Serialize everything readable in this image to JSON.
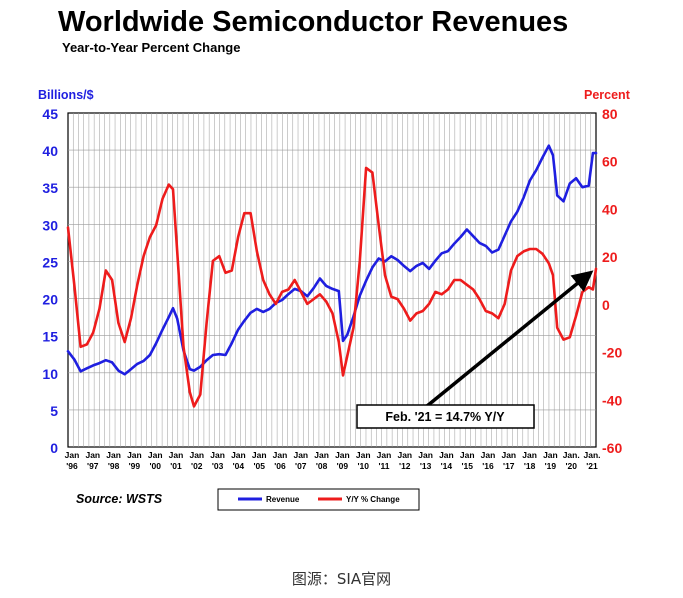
{
  "chart_data": {
    "type": "line",
    "title": "Worldwide Semiconductor Revenues",
    "subtitle": "Year-to-Year Percent Change",
    "left_axis": {
      "label": "Billions/$",
      "min": 0,
      "max": 45,
      "ticks": [
        0,
        5,
        10,
        15,
        20,
        25,
        30,
        35,
        40,
        45
      ]
    },
    "right_axis": {
      "label": "Percent",
      "min": -60,
      "max": 80,
      "ticks": [
        -60,
        -40,
        -20,
        0,
        20,
        40,
        60,
        80
      ]
    },
    "x_axis": {
      "range": [
        1996.0,
        2021.15
      ],
      "ticks": [
        {
          "top": "Jan",
          "bottom": "'96"
        },
        {
          "top": "Jan",
          "bottom": "'97"
        },
        {
          "top": "Jan",
          "bottom": "'98"
        },
        {
          "top": "Jan",
          "bottom": "'99"
        },
        {
          "top": "Jan",
          "bottom": "'00"
        },
        {
          "top": "Jan",
          "bottom": "'01"
        },
        {
          "top": "Jan",
          "bottom": "'02"
        },
        {
          "top": "Jan",
          "bottom": "'03"
        },
        {
          "top": "Jan",
          "bottom": "'04"
        },
        {
          "top": "Jan",
          "bottom": "'05"
        },
        {
          "top": "Jan",
          "bottom": "'06"
        },
        {
          "top": "Jan",
          "bottom": "'07"
        },
        {
          "top": "Jan",
          "bottom": "'08"
        },
        {
          "top": "Jan",
          "bottom": "'09"
        },
        {
          "top": "Jan",
          "bottom": "'10"
        },
        {
          "top": "Jan",
          "bottom": "'11"
        },
        {
          "top": "Jan",
          "bottom": "'12"
        },
        {
          "top": "Jan",
          "bottom": "'13"
        },
        {
          "top": "Jan",
          "bottom": "'14"
        },
        {
          "top": "Jan",
          "bottom": "'15"
        },
        {
          "top": "Jan",
          "bottom": "'16"
        },
        {
          "top": "Jan",
          "bottom": "'17"
        },
        {
          "top": "Jan",
          "bottom": "'18"
        },
        {
          "top": "Jan",
          "bottom": "'19"
        },
        {
          "top": "Jan.",
          "bottom": "'20"
        },
        {
          "top": "Jan.",
          "bottom": "'21"
        }
      ]
    },
    "grid": true,
    "series": [
      {
        "name": "Revenue",
        "axis": "left",
        "color": "#1f1fe0",
        "points": [
          [
            1996.0,
            12.9
          ],
          [
            1996.3,
            11.8
          ],
          [
            1996.6,
            10.2
          ],
          [
            1996.9,
            10.6
          ],
          [
            1997.2,
            11.0
          ],
          [
            1997.5,
            11.3
          ],
          [
            1997.8,
            11.7
          ],
          [
            1998.1,
            11.4
          ],
          [
            1998.4,
            10.3
          ],
          [
            1998.7,
            9.8
          ],
          [
            1999.0,
            10.5
          ],
          [
            1999.3,
            11.2
          ],
          [
            1999.6,
            11.6
          ],
          [
            1999.9,
            12.4
          ],
          [
            2000.2,
            14.0
          ],
          [
            2000.5,
            15.8
          ],
          [
            2000.8,
            17.5
          ],
          [
            2001.0,
            18.7
          ],
          [
            2001.2,
            17.3
          ],
          [
            2001.5,
            13.0
          ],
          [
            2001.8,
            10.5
          ],
          [
            2002.0,
            10.3
          ],
          [
            2002.3,
            10.8
          ],
          [
            2002.6,
            11.7
          ],
          [
            2002.9,
            12.4
          ],
          [
            2003.2,
            12.5
          ],
          [
            2003.5,
            12.4
          ],
          [
            2003.8,
            14.0
          ],
          [
            2004.1,
            15.8
          ],
          [
            2004.4,
            17.0
          ],
          [
            2004.7,
            18.1
          ],
          [
            2005.0,
            18.6
          ],
          [
            2005.3,
            18.2
          ],
          [
            2005.6,
            18.6
          ],
          [
            2005.9,
            19.4
          ],
          [
            2006.2,
            19.8
          ],
          [
            2006.5,
            20.6
          ],
          [
            2006.8,
            21.3
          ],
          [
            2007.1,
            21.0
          ],
          [
            2007.4,
            20.3
          ],
          [
            2007.7,
            21.4
          ],
          [
            2008.0,
            22.7
          ],
          [
            2008.3,
            21.7
          ],
          [
            2008.6,
            21.3
          ],
          [
            2008.9,
            21.0
          ],
          [
            2009.1,
            14.3
          ],
          [
            2009.3,
            15.1
          ],
          [
            2009.6,
            17.6
          ],
          [
            2009.9,
            20.4
          ],
          [
            2010.2,
            22.4
          ],
          [
            2010.5,
            24.2
          ],
          [
            2010.8,
            25.4
          ],
          [
            2011.1,
            25.0
          ],
          [
            2011.4,
            25.7
          ],
          [
            2011.7,
            25.2
          ],
          [
            2012.0,
            24.4
          ],
          [
            2012.3,
            23.7
          ],
          [
            2012.6,
            24.4
          ],
          [
            2012.9,
            24.8
          ],
          [
            2013.2,
            24.0
          ],
          [
            2013.5,
            25.1
          ],
          [
            2013.8,
            26.1
          ],
          [
            2014.1,
            26.4
          ],
          [
            2014.4,
            27.4
          ],
          [
            2014.7,
            28.3
          ],
          [
            2015.0,
            29.3
          ],
          [
            2015.3,
            28.4
          ],
          [
            2015.6,
            27.5
          ],
          [
            2015.9,
            27.1
          ],
          [
            2016.2,
            26.2
          ],
          [
            2016.5,
            26.6
          ],
          [
            2016.8,
            28.5
          ],
          [
            2017.1,
            30.4
          ],
          [
            2017.4,
            31.7
          ],
          [
            2017.7,
            33.6
          ],
          [
            2018.0,
            35.9
          ],
          [
            2018.3,
            37.3
          ],
          [
            2018.6,
            39.0
          ],
          [
            2018.9,
            40.6
          ],
          [
            2019.1,
            39.3
          ],
          [
            2019.3,
            33.9
          ],
          [
            2019.6,
            33.1
          ],
          [
            2019.9,
            35.5
          ],
          [
            2020.2,
            36.2
          ],
          [
            2020.5,
            35.0
          ],
          [
            2020.8,
            35.2
          ],
          [
            2021.0,
            39.6
          ],
          [
            2021.15,
            39.6
          ]
        ]
      },
      {
        "name": "Y/Y % Change",
        "axis": "right",
        "color": "#ee1c1c",
        "points": [
          [
            1996.0,
            32
          ],
          [
            1996.3,
            8
          ],
          [
            1996.6,
            -18
          ],
          [
            1996.9,
            -17
          ],
          [
            1997.2,
            -12
          ],
          [
            1997.5,
            -2
          ],
          [
            1997.8,
            14
          ],
          [
            1998.1,
            10
          ],
          [
            1998.4,
            -8
          ],
          [
            1998.7,
            -16
          ],
          [
            1999.0,
            -6
          ],
          [
            1999.3,
            8
          ],
          [
            1999.6,
            20
          ],
          [
            1999.9,
            28
          ],
          [
            2000.2,
            33
          ],
          [
            2000.5,
            44
          ],
          [
            2000.8,
            50
          ],
          [
            2001.0,
            48
          ],
          [
            2001.2,
            22
          ],
          [
            2001.5,
            -18
          ],
          [
            2001.8,
            -37
          ],
          [
            2002.0,
            -43
          ],
          [
            2002.3,
            -38
          ],
          [
            2002.6,
            -8
          ],
          [
            2002.9,
            18
          ],
          [
            2003.2,
            20
          ],
          [
            2003.5,
            13
          ],
          [
            2003.8,
            14
          ],
          [
            2004.1,
            28
          ],
          [
            2004.4,
            38
          ],
          [
            2004.7,
            38
          ],
          [
            2005.0,
            22
          ],
          [
            2005.3,
            10
          ],
          [
            2005.6,
            4
          ],
          [
            2005.9,
            0
          ],
          [
            2006.2,
            5
          ],
          [
            2006.5,
            6
          ],
          [
            2006.8,
            10
          ],
          [
            2007.1,
            5
          ],
          [
            2007.4,
            0
          ],
          [
            2007.7,
            2
          ],
          [
            2008.0,
            4
          ],
          [
            2008.3,
            1
          ],
          [
            2008.6,
            -4
          ],
          [
            2008.9,
            -16
          ],
          [
            2009.1,
            -30
          ],
          [
            2009.3,
            -22
          ],
          [
            2009.6,
            -10
          ],
          [
            2009.9,
            18
          ],
          [
            2010.2,
            57
          ],
          [
            2010.5,
            55
          ],
          [
            2010.8,
            33
          ],
          [
            2011.1,
            12
          ],
          [
            2011.4,
            3
          ],
          [
            2011.7,
            2
          ],
          [
            2012.0,
            -2
          ],
          [
            2012.3,
            -7
          ],
          [
            2012.6,
            -4
          ],
          [
            2012.9,
            -3
          ],
          [
            2013.2,
            0
          ],
          [
            2013.5,
            5
          ],
          [
            2013.8,
            4
          ],
          [
            2014.1,
            6
          ],
          [
            2014.4,
            10
          ],
          [
            2014.7,
            10
          ],
          [
            2015.0,
            8
          ],
          [
            2015.3,
            6
          ],
          [
            2015.6,
            2
          ],
          [
            2015.9,
            -3
          ],
          [
            2016.2,
            -4
          ],
          [
            2016.5,
            -6
          ],
          [
            2016.8,
            0
          ],
          [
            2017.1,
            14
          ],
          [
            2017.4,
            20
          ],
          [
            2017.7,
            22
          ],
          [
            2018.0,
            23
          ],
          [
            2018.3,
            23
          ],
          [
            2018.6,
            21
          ],
          [
            2018.9,
            17
          ],
          [
            2019.1,
            12
          ],
          [
            2019.3,
            -10
          ],
          [
            2019.6,
            -15
          ],
          [
            2019.9,
            -14
          ],
          [
            2020.2,
            -5
          ],
          [
            2020.5,
            5
          ],
          [
            2020.8,
            7
          ],
          [
            2021.0,
            6
          ],
          [
            2021.15,
            14.7
          ]
        ]
      }
    ],
    "annotation": {
      "text": "Feb. '21 = 14.7% Y/Y",
      "x": 2021.15,
      "y": 14.7,
      "axis": "right"
    },
    "legend": {
      "placement": "bottom",
      "entries": [
        "Revenue",
        "Y/Y % Change"
      ]
    },
    "source": "Source: WSTS"
  },
  "caption": "图源：SIA官网"
}
